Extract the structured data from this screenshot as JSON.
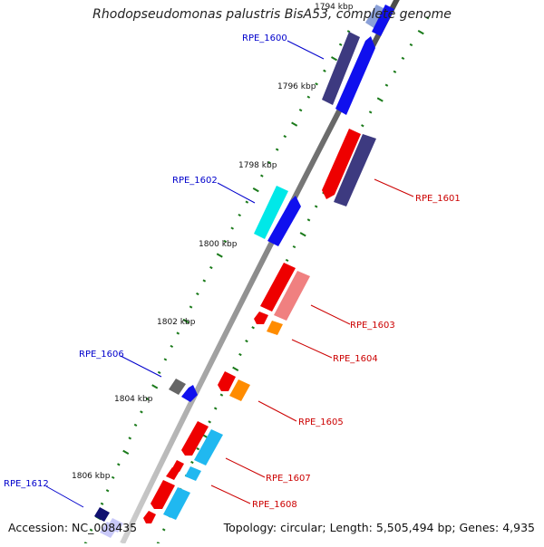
{
  "title": "Rhodopseudomonas palustris BisA53, complete genome",
  "accession": "Accession: NC_008435",
  "summary": "Topology: circular; Length: 5,505,494 bp; Genes: 4,935",
  "kbp_labels": [
    "1794 kbp",
    "1796 kbp",
    "1798 kbp",
    "1800 kbp",
    "1802 kbp",
    "1804 kbp",
    "1806 kbp"
  ],
  "genes_left": [
    "RPE_1600",
    "RPE_1602",
    "RPE_1606",
    "RPE_1612"
  ],
  "genes_right": [
    "RPE_1601",
    "RPE_1603",
    "RPE_1604",
    "RPE_1605",
    "RPE_1607",
    "RPE_1608"
  ],
  "colors": {
    "forward_label": "#0000cc",
    "reverse_label": "#cc0000",
    "tick": "#1a7a1a",
    "backbone": "#808080"
  }
}
